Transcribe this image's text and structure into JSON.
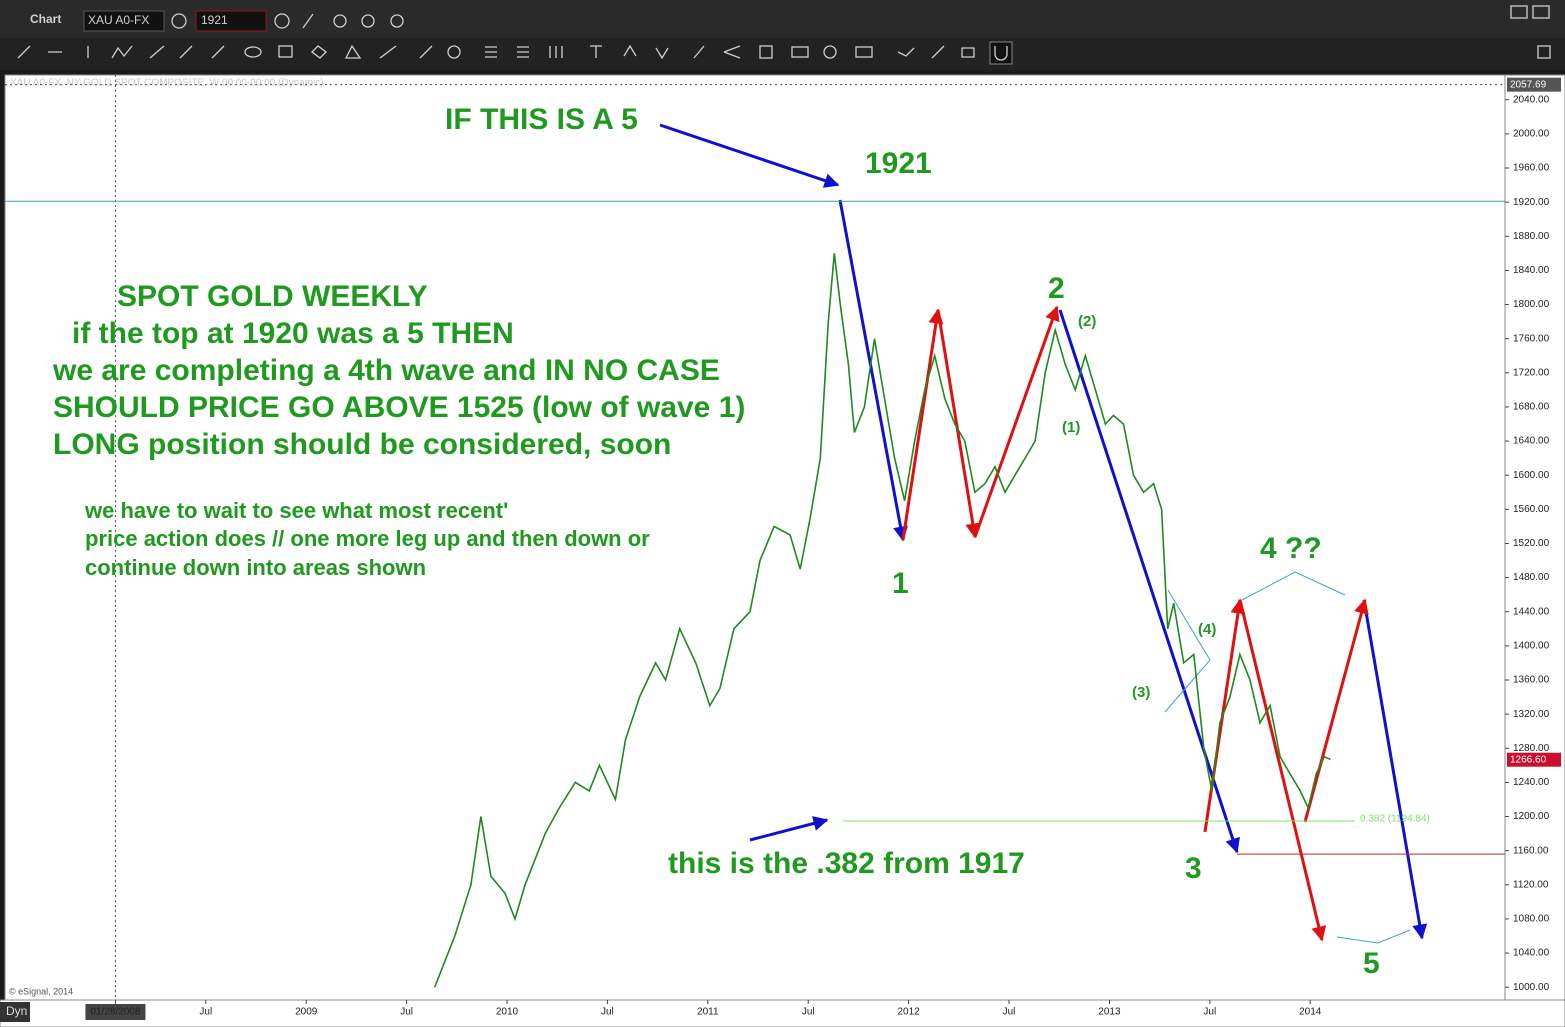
{
  "ui": {
    "window_title": "Chart",
    "symbol": "XAU A0-FX",
    "interval": "1921",
    "chart_header": "XAU A0-FX, NY GOLD SPOT COMPOSITE, W 00:00-00:00 (Dynamic)",
    "copyright": "© eSignal, 2014",
    "mode": "Dyn"
  },
  "chart_data": {
    "type": "line",
    "color": "#1e8a1e",
    "x": [
      2009.64,
      2009.74,
      2009.82,
      2009.87,
      2009.92,
      2009.99,
      2010.04,
      2010.09,
      2010.19,
      2010.26,
      2010.34,
      2010.41,
      2010.46,
      2010.54,
      2010.59,
      2010.66,
      2010.74,
      2010.79,
      2010.86,
      2010.94,
      2011.01,
      2011.06,
      2011.13,
      2011.21,
      2011.26,
      2011.33,
      2011.41,
      2011.46,
      2011.51,
      2011.56,
      2011.6,
      2011.63,
      2011.66,
      2011.7,
      2011.73,
      2011.78,
      2011.83,
      2011.88,
      2011.93,
      2011.98,
      2012.03,
      2012.08,
      2012.13,
      2012.18,
      2012.23,
      2012.28,
      2012.33,
      2012.38,
      2012.43,
      2012.48,
      2012.53,
      2012.58,
      2012.63,
      2012.68,
      2012.73,
      2012.78,
      2012.83,
      2012.88,
      2012.93,
      2012.98,
      2013.02,
      2013.07,
      2013.12,
      2013.17,
      2013.22,
      2013.26,
      2013.29,
      2013.32,
      2013.37,
      2013.42,
      2013.47,
      2013.51,
      2013.55,
      2013.6,
      2013.65,
      2013.7,
      2013.75,
      2013.8,
      2013.85,
      2013.9,
      2013.95,
      2013.99,
      2014.03,
      2014.07,
      2014.1
    ],
    "values": [
      1000,
      1060,
      1120,
      1200,
      1130,
      1110,
      1080,
      1120,
      1180,
      1210,
      1240,
      1230,
      1260,
      1220,
      1290,
      1340,
      1380,
      1360,
      1420,
      1380,
      1330,
      1350,
      1420,
      1440,
      1500,
      1540,
      1530,
      1490,
      1550,
      1620,
      1780,
      1860,
      1800,
      1730,
      1650,
      1680,
      1760,
      1690,
      1620,
      1570,
      1640,
      1700,
      1740,
      1690,
      1660,
      1640,
      1580,
      1590,
      1610,
      1580,
      1600,
      1620,
      1640,
      1720,
      1770,
      1730,
      1700,
      1740,
      1700,
      1660,
      1670,
      1660,
      1600,
      1580,
      1590,
      1560,
      1420,
      1450,
      1380,
      1390,
      1280,
      1230,
      1310,
      1340,
      1390,
      1360,
      1310,
      1330,
      1270,
      1250,
      1230,
      1210,
      1250,
      1270,
      1267
    ],
    "xlim": [
      2007.5,
      2014.97
    ],
    "xticks": [
      {
        "value": 2008.05,
        "label": "01/28/2008"
      },
      {
        "value": 2008.5,
        "label": "Jul"
      },
      2009,
      {
        "value": 2009.5,
        "label": "Jul"
      },
      2010,
      {
        "value": 2010.5,
        "label": "Jul"
      },
      2011,
      {
        "value": 2011.5,
        "label": "Jul"
      },
      2012,
      {
        "value": 2012.5,
        "label": "Jul"
      },
      2013,
      {
        "value": 2013.5,
        "label": "Jul"
      },
      2014
    ],
    "ylim": [
      985,
      2069
    ],
    "yticks": [
      {
        "value": 1000,
        "label": "1000.00"
      },
      {
        "value": 1040,
        "label": "1040.00"
      },
      {
        "value": 1080,
        "label": "1080.00"
      },
      {
        "value": 1120,
        "label": "1120.00"
      },
      {
        "value": 1160,
        "label": "1160.00"
      },
      {
        "value": 1200,
        "label": "1200.00"
      },
      {
        "value": 1240,
        "label": "1240.00"
      },
      {
        "value": 1280,
        "label": "1280.00"
      },
      {
        "value": 1320,
        "label": "1320.00"
      },
      {
        "value": 1360,
        "label": "1360.00"
      },
      {
        "value": 1400,
        "label": "1400.00"
      },
      {
        "value": 1440,
        "label": "1440.00"
      },
      {
        "value": 1480,
        "label": "1480.00"
      },
      {
        "value": 1520,
        "label": "1520.00"
      },
      {
        "value": 1560,
        "label": "1560.00"
      },
      {
        "value": 1600,
        "label": "1600.00"
      },
      {
        "value": 1640,
        "label": "1640.00"
      },
      {
        "value": 1680,
        "label": "1680.00"
      },
      {
        "value": 1720,
        "label": "1720.00"
      },
      {
        "value": 1760,
        "label": "1760.00"
      },
      {
        "value": 1800,
        "label": "1800.00"
      },
      {
        "value": 1840,
        "label": "1840.00"
      },
      {
        "value": 1880,
        "label": "1880.00"
      },
      {
        "value": 1920,
        "label": "1920.00"
      },
      {
        "value": 1960,
        "label": "1960.00"
      },
      {
        "value": 2000,
        "label": "2000.00"
      },
      {
        "value": 2040,
        "label": "2040.00"
      }
    ],
    "levels": [
      {
        "value": 1921,
        "color": "#2aa7b0"
      },
      {
        "value": 1194.84,
        "label": "0.382 (1194.84)",
        "color": "#7be36b"
      },
      {
        "value": 1156,
        "color": "#c0282a"
      }
    ],
    "markers": [
      {
        "value": 2057.69,
        "label": "2057.69",
        "color": "#555555"
      },
      {
        "value": 1266.6,
        "label": "1266.60",
        "color": "#c8102e"
      }
    ],
    "annotations": [
      "IF THIS IS A 5",
      "1921",
      "SPOT GOLD WEEKLY",
      "if the top at 1920 was a 5 THEN",
      "we are completing a 4th wave and IN NO CASE",
      "SHOULD PRICE GO ABOVE 1525 (low of wave 1)",
      "LONG position should be considered, soon",
      "we have to wait to see what most recent'",
      "price action does // one more leg up and then down or",
      "continue down into areas shown",
      "1",
      "2",
      "(1)",
      "(2)",
      "(3)",
      "(4)",
      "3",
      "4 ??",
      "5",
      "this is the .382 from 1917"
    ]
  }
}
